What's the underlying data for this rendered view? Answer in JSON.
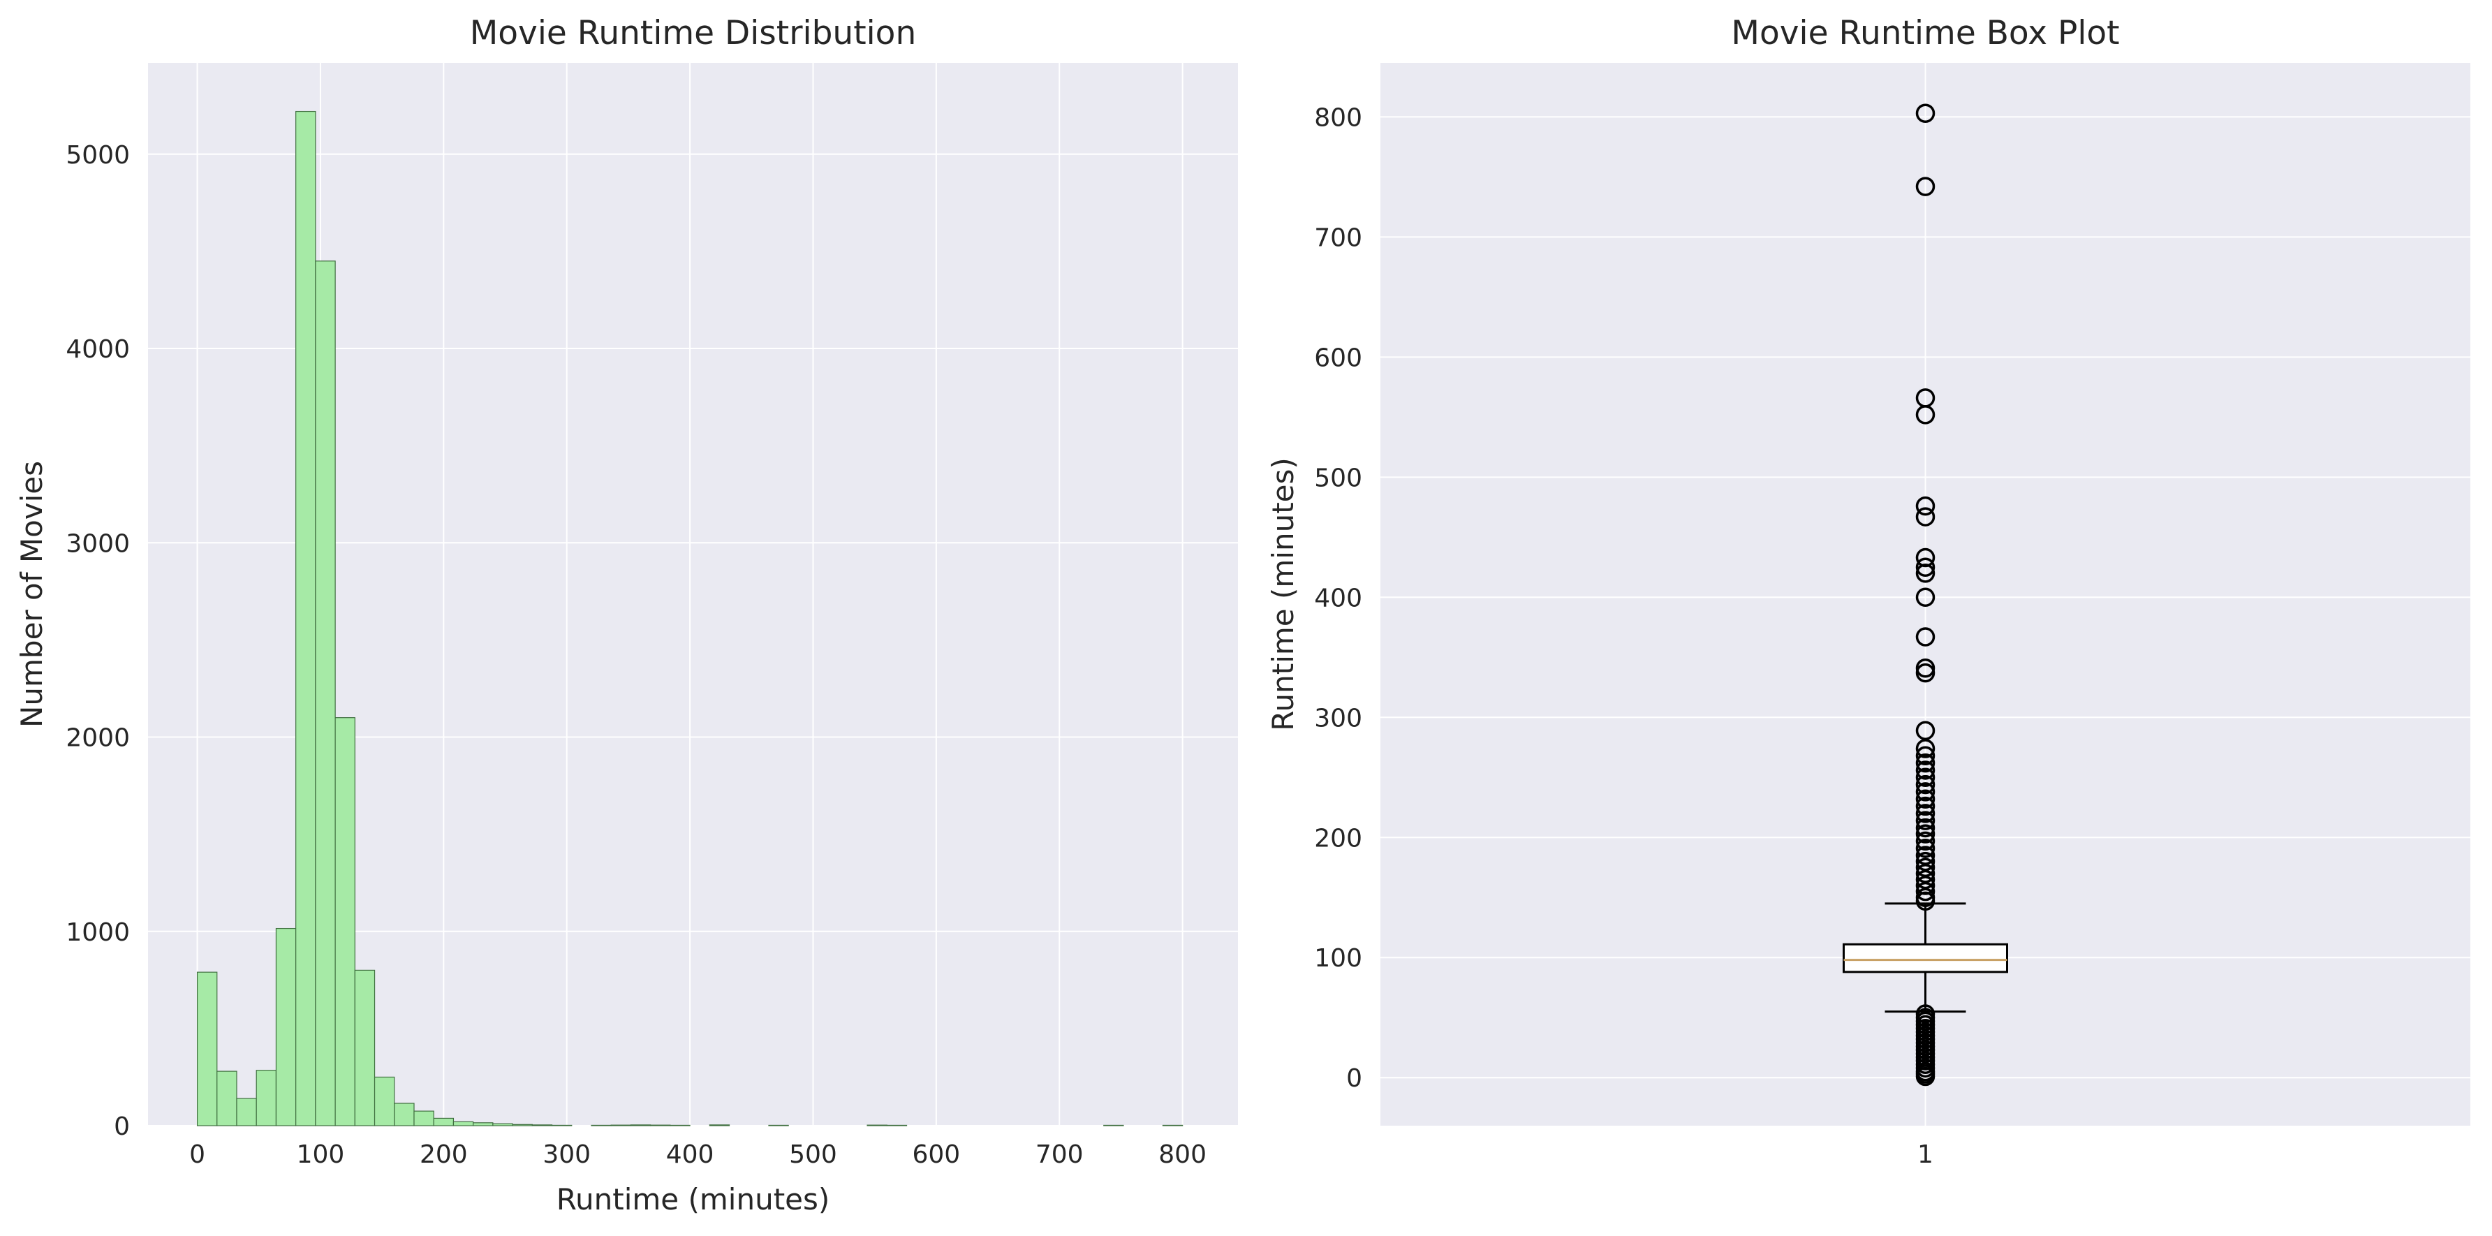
{
  "chart_data": [
    {
      "type": "bar",
      "subtype": "histogram",
      "title": "Movie Runtime Distribution",
      "xlabel": "Runtime (minutes)",
      "ylabel": "Number of Movies",
      "xlim": [
        -40,
        845
      ],
      "ylim": [
        0,
        5470
      ],
      "xticks": [
        0,
        100,
        200,
        300,
        400,
        500,
        600,
        700,
        800
      ],
      "yticks": [
        0,
        1000,
        2000,
        3000,
        4000,
        5000
      ],
      "bin_width": 16,
      "bin_starts": [
        0,
        16,
        32,
        48,
        64,
        80,
        96,
        112,
        128,
        144,
        160,
        176,
        192,
        208,
        224,
        240,
        256,
        272,
        288,
        320,
        336,
        352,
        368,
        384,
        416,
        464,
        544,
        560,
        736,
        784
      ],
      "counts": [
        790,
        280,
        140,
        285,
        1015,
        5220,
        4450,
        2100,
        800,
        250,
        115,
        75,
        38,
        20,
        15,
        10,
        6,
        4,
        2,
        2,
        3,
        4,
        3,
        2,
        4,
        2,
        3,
        2,
        2,
        2
      ],
      "grid": true,
      "colors": {
        "bar_fill": "#a6eaa6",
        "bar_edge": "#3f6f3f",
        "plot_bg": "#eaeaf2",
        "grid": "#ffffff"
      }
    },
    {
      "type": "box",
      "title": "Movie Runtime Box Plot",
      "xlabel": "",
      "ylabel": "Runtime (minutes)",
      "xticks": [
        "1"
      ],
      "ylim": [
        -40,
        845
      ],
      "yticks": [
        0,
        100,
        200,
        300,
        400,
        500,
        600,
        700,
        800
      ],
      "q1": 88,
      "median": 98,
      "q3": 111,
      "whisker_low": 55,
      "whisker_high": 145,
      "outliers": [
        803,
        742,
        566,
        552,
        476,
        467,
        433,
        425,
        420,
        400,
        367,
        341,
        337,
        289,
        274,
        268,
        262,
        256,
        250,
        244,
        238,
        232,
        226,
        220,
        214,
        208,
        203,
        197,
        191,
        185,
        180,
        175,
        170,
        165,
        160,
        155,
        150,
        147,
        53,
        50,
        47,
        44,
        41,
        38,
        35,
        32,
        29,
        26,
        23,
        20,
        17,
        14,
        11,
        8,
        5,
        3,
        1
      ],
      "grid": true,
      "colors": {
        "box_edge": "#000000",
        "box_fill": "#ffffff",
        "median": "#c8a064",
        "plot_bg": "#eaeaf2",
        "grid": "#ffffff"
      }
    }
  ]
}
